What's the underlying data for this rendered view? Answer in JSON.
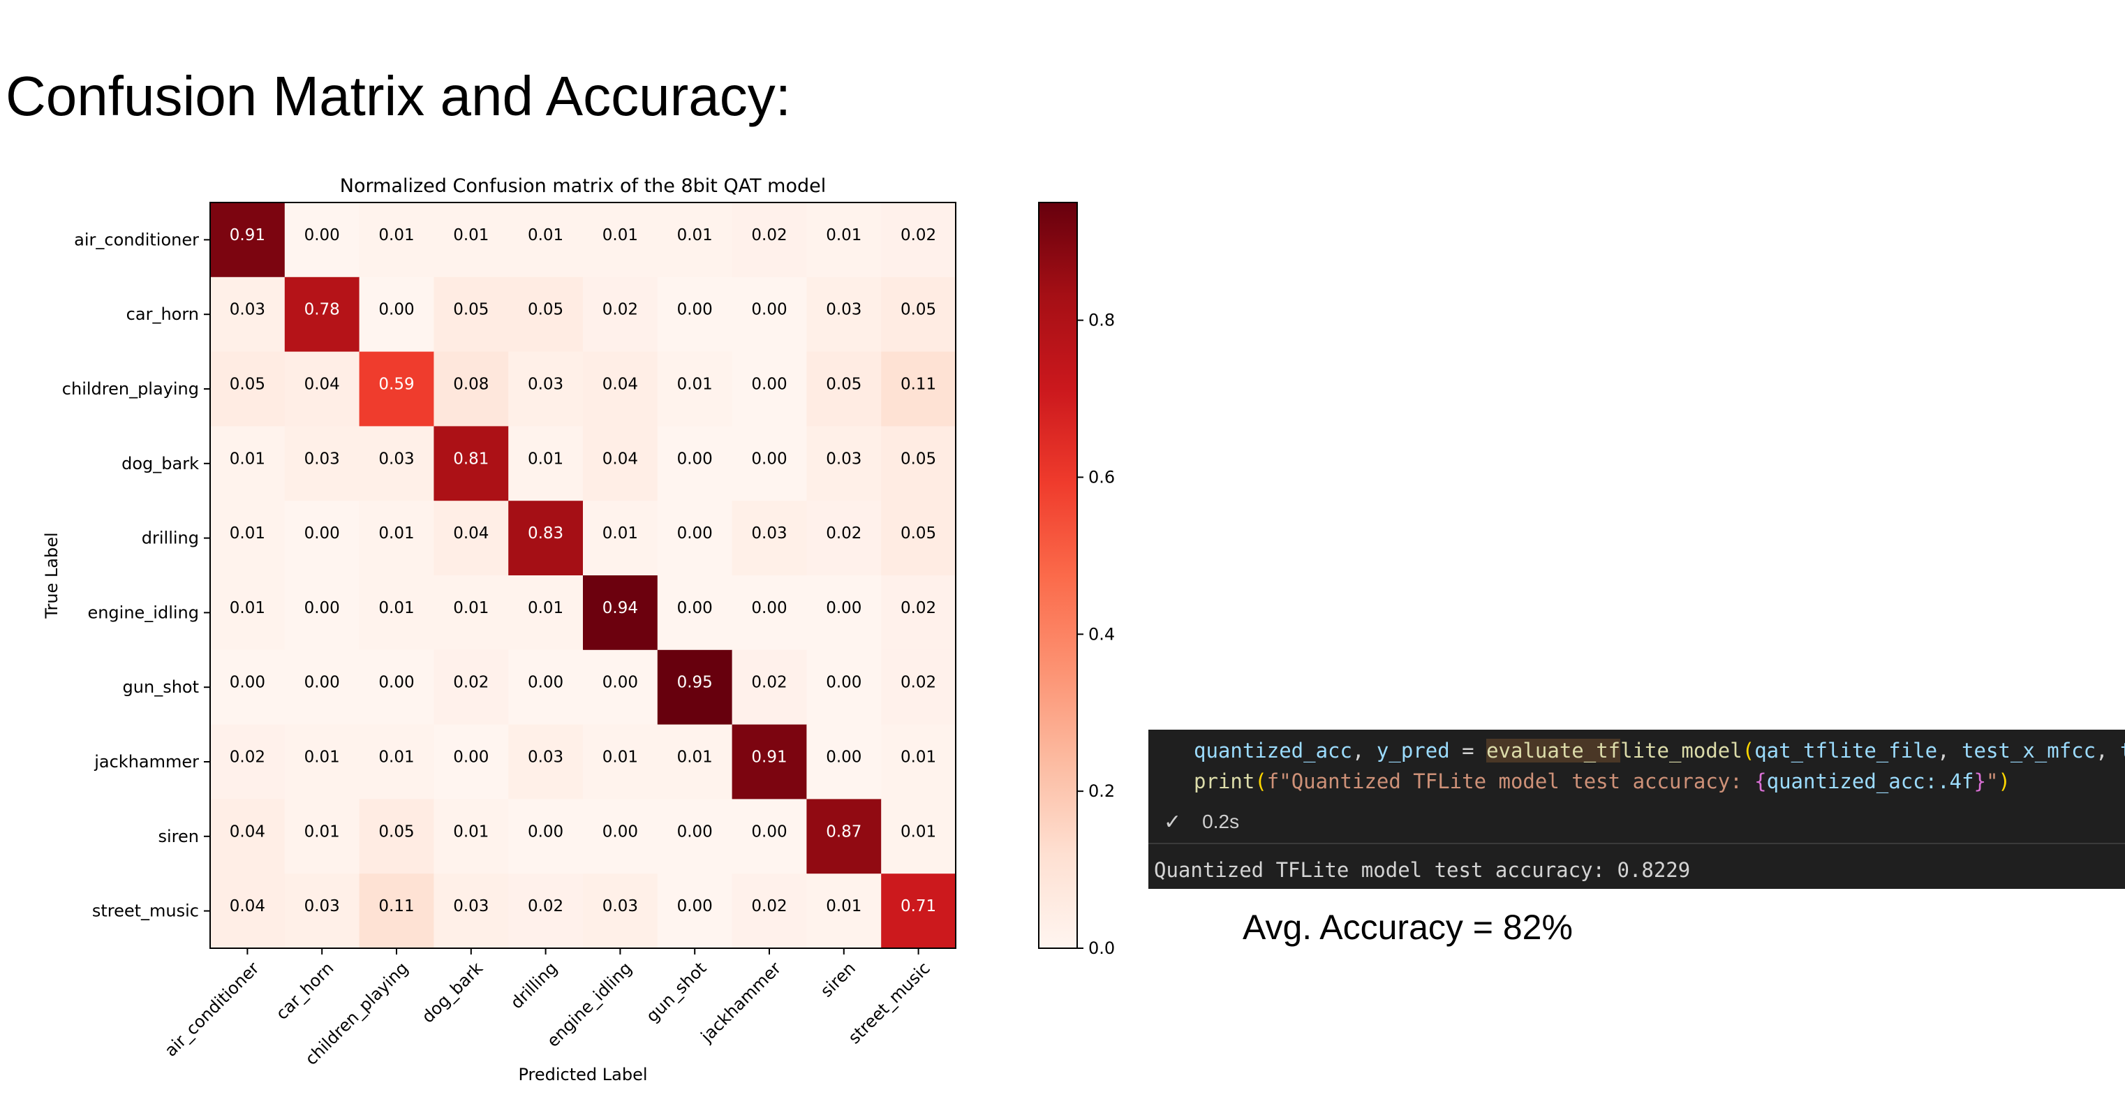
{
  "slide": {
    "title": "Confusion Matrix and Accuracy:",
    "avg_accuracy": "Avg. Accuracy = 82%"
  },
  "code": {
    "line1": {
      "a": "quantized_acc",
      "b": ", ",
      "c": "y_pred",
      "d": " = ",
      "e": "evaluate_tf",
      "f": "lite_model",
      "g": "(",
      "h": "qat_tflite_file",
      "i": ", ",
      "j": "test_x_mfcc",
      "k": ", ",
      "l": "test_y",
      "m": ")"
    },
    "line2": {
      "a": "print",
      "b": "(",
      "c": "f\"Quantized TFLite model test accuracy: ",
      "d": "{",
      "e": "quantized_acc",
      "f": ":.4f",
      "g": "}",
      "h": "\"",
      "i": ")"
    },
    "status_icon": "check-icon",
    "status_check": "✓",
    "duration": "0.2s",
    "output": "Quantized TFLite model test accuracy: 0.8229"
  },
  "colors": {
    "code_background": "#1f1f1f",
    "colormap_low": "#fff5f0",
    "colormap_mid": "#e8795d",
    "colormap_high": "#67000d"
  },
  "chart_data": {
    "type": "heatmap",
    "title": "Normalized Confusion matrix of the 8bit QAT model",
    "xlabel": "Predicted Label",
    "ylabel": "True Label",
    "x_categories": [
      "air_conditioner",
      "car_horn",
      "children_playing",
      "dog_bark",
      "drilling",
      "engine_idling",
      "gun_shot",
      "jackhammer",
      "siren",
      "street_music"
    ],
    "y_categories": [
      "air_conditioner",
      "car_horn",
      "children_playing",
      "dog_bark",
      "drilling",
      "engine_idling",
      "gun_shot",
      "jackhammer",
      "siren",
      "street_music"
    ],
    "values": [
      [
        0.91,
        0.0,
        0.01,
        0.01,
        0.01,
        0.01,
        0.01,
        0.02,
        0.01,
        0.02
      ],
      [
        0.03,
        0.78,
        0.0,
        0.05,
        0.05,
        0.02,
        0.0,
        0.0,
        0.03,
        0.05
      ],
      [
        0.05,
        0.04,
        0.59,
        0.08,
        0.03,
        0.04,
        0.01,
        0.0,
        0.05,
        0.11
      ],
      [
        0.01,
        0.03,
        0.03,
        0.81,
        0.01,
        0.04,
        0.0,
        0.0,
        0.03,
        0.05
      ],
      [
        0.01,
        0.0,
        0.01,
        0.04,
        0.83,
        0.01,
        0.0,
        0.03,
        0.02,
        0.05
      ],
      [
        0.01,
        0.0,
        0.01,
        0.01,
        0.01,
        0.94,
        0.0,
        0.0,
        0.0,
        0.02
      ],
      [
        0.0,
        0.0,
        0.0,
        0.02,
        0.0,
        0.0,
        0.95,
        0.02,
        0.0,
        0.02
      ],
      [
        0.02,
        0.01,
        0.01,
        0.0,
        0.03,
        0.01,
        0.01,
        0.91,
        0.0,
        0.01
      ],
      [
        0.04,
        0.01,
        0.05,
        0.01,
        0.0,
        0.0,
        0.0,
        0.0,
        0.87,
        0.01
      ],
      [
        0.04,
        0.03,
        0.11,
        0.03,
        0.02,
        0.03,
        0.0,
        0.02,
        0.01,
        0.71
      ]
    ],
    "value_format": "0.00",
    "colorbar": {
      "range": [
        0.0,
        0.95
      ],
      "ticks": [
        0.0,
        0.2,
        0.4,
        0.6,
        0.8
      ],
      "tick_labels": [
        "0.0",
        "0.2",
        "0.4",
        "0.6",
        "0.8"
      ]
    },
    "colormap": "Reds"
  }
}
